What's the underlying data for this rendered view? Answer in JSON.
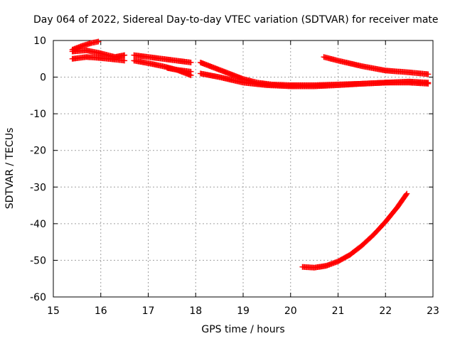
{
  "chart_data": {
    "type": "scatter",
    "title": "Day 064 of 2022, Sidereal Day-to-day VTEC variation (SDTVAR) for receiver mate",
    "xlabel": "GPS time / hours",
    "ylabel": "SDTVAR / TECUs",
    "xlim": [
      15,
      23
    ],
    "ylim": [
      -60,
      10
    ],
    "xticks": [
      "15",
      "16",
      "17",
      "18",
      "19",
      "20",
      "21",
      "22",
      "23"
    ],
    "yticks": [
      "10",
      "0",
      "-10",
      "-20",
      "-30",
      "-40",
      "-50",
      "-60"
    ],
    "grid": true,
    "marker_color": "#ff0000",
    "series": [
      {
        "x": [
          15.4,
          15.6,
          15.8,
          15.95
        ],
        "y": [
          7.5,
          8.5,
          9.3,
          9.7
        ]
      },
      {
        "x": [
          15.4,
          15.7,
          16.0,
          16.3,
          16.5
        ],
        "y": [
          7.0,
          7.3,
          6.5,
          5.5,
          6.0
        ]
      },
      {
        "x": [
          15.4,
          15.7,
          16.0,
          16.3,
          16.5
        ],
        "y": [
          5.0,
          5.5,
          5.2,
          4.8,
          4.5
        ]
      },
      {
        "x": [
          16.7,
          17.0,
          17.3,
          17.6,
          17.9
        ],
        "y": [
          6.0,
          5.5,
          5.0,
          4.5,
          4.0
        ]
      },
      {
        "x": [
          16.7,
          17.0,
          17.3,
          17.6,
          17.9
        ],
        "y": [
          4.5,
          3.8,
          3.0,
          2.0,
          1.5
        ]
      },
      {
        "x": [
          17.4,
          17.6,
          17.9
        ],
        "y": [
          2.5,
          2.0,
          0.5
        ]
      },
      {
        "x": [
          18.1,
          18.4,
          18.7,
          19.0,
          19.3,
          19.6,
          20.0,
          20.5,
          21.0,
          21.5,
          22.0,
          22.5,
          22.9
        ],
        "y": [
          4.0,
          2.5,
          1.0,
          -0.5,
          -1.5,
          -2.0,
          -2.2,
          -2.2,
          -2.0,
          -1.8,
          -1.5,
          -1.2,
          -1.5
        ]
      },
      {
        "x": [
          18.1,
          18.5,
          19.0,
          19.5,
          20.0,
          20.5,
          21.0,
          21.5,
          22.0,
          22.5,
          22.9
        ],
        "y": [
          1.0,
          0.0,
          -1.5,
          -2.2,
          -2.5,
          -2.5,
          -2.2,
          -1.8,
          -1.5,
          -1.5,
          -1.8
        ]
      },
      {
        "x": [
          20.7,
          21.0,
          21.5,
          22.0,
          22.5,
          22.9
        ],
        "y": [
          5.5,
          4.5,
          3.0,
          1.8,
          1.3,
          0.8
        ]
      },
      {
        "x": [
          20.25,
          20.5,
          20.75,
          21.0,
          21.25,
          21.5,
          21.75,
          22.0,
          22.25,
          22.45
        ],
        "y": [
          -51.8,
          -52.0,
          -51.5,
          -50.3,
          -48.5,
          -46.0,
          -43.0,
          -39.5,
          -35.5,
          -31.8
        ]
      }
    ]
  }
}
